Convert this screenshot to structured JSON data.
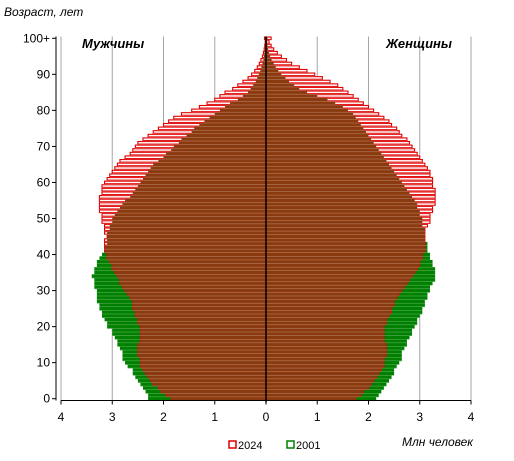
{
  "chart_data": {
    "type": "population-pyramid",
    "ylabel": "Возраст, лет",
    "xlabel": "Млн человек",
    "left_label": "Мужчины",
    "right_label": "Женщины",
    "x_ticks": [
      "4",
      "3",
      "2",
      "1",
      "0",
      "1",
      "2",
      "3",
      "4"
    ],
    "xlim": [
      -4,
      4
    ],
    "y_ticks": [
      "0",
      "10",
      "20",
      "30",
      "40",
      "50",
      "60",
      "70",
      "80",
      "90",
      "100+"
    ],
    "y_tick_values": [
      0,
      10,
      20,
      30,
      40,
      50,
      60,
      70,
      80,
      90,
      100
    ],
    "ylim": [
      0,
      100
    ],
    "grid_x": true,
    "legend_position": "bottom",
    "ages_key": "ages 0..100 (100 = 100+), values in millions",
    "series": [
      {
        "name": "2001",
        "color": "#008000",
        "fill": "#008000",
        "male": [
          2.3,
          2.3,
          2.35,
          2.4,
          2.45,
          2.5,
          2.55,
          2.6,
          2.6,
          2.7,
          2.75,
          2.8,
          2.8,
          2.8,
          2.85,
          2.9,
          2.9,
          2.95,
          3.0,
          3.0,
          3.1,
          3.1,
          3.15,
          3.2,
          3.2,
          3.25,
          3.25,
          3.3,
          3.3,
          3.3,
          3.3,
          3.35,
          3.35,
          3.35,
          3.4,
          3.35,
          3.35,
          3.3,
          3.3,
          3.25,
          3.2,
          3.15,
          3.15,
          3.1,
          3.1,
          3.1,
          3.1,
          3.05,
          3.05,
          3.0,
          3.0,
          2.95,
          2.9,
          2.85,
          2.8,
          2.75,
          2.65,
          2.6,
          2.55,
          2.5,
          2.45,
          2.4,
          2.35,
          2.3,
          2.25,
          2.2,
          2.1,
          2.0,
          1.95,
          1.85,
          1.8,
          1.7,
          1.65,
          1.55,
          1.45,
          1.4,
          1.3,
          1.2,
          1.1,
          1.0,
          0.9,
          0.8,
          0.7,
          0.55,
          0.45,
          0.35,
          0.3,
          0.25,
          0.2,
          0.17,
          0.14,
          0.11,
          0.09,
          0.07,
          0.05,
          0.04,
          0.03,
          0.02,
          0.015,
          0.01,
          0.02
        ],
        "female": [
          2.15,
          2.2,
          2.25,
          2.3,
          2.35,
          2.4,
          2.45,
          2.5,
          2.5,
          2.55,
          2.6,
          2.65,
          2.65,
          2.65,
          2.7,
          2.75,
          2.75,
          2.8,
          2.85,
          2.85,
          2.9,
          2.95,
          2.95,
          3.0,
          3.05,
          3.05,
          3.1,
          3.1,
          3.15,
          3.15,
          3.2,
          3.2,
          3.25,
          3.3,
          3.3,
          3.3,
          3.3,
          3.25,
          3.25,
          3.2,
          3.2,
          3.15,
          3.15,
          3.15,
          3.1,
          3.1,
          3.1,
          3.1,
          3.05,
          3.05,
          3.05,
          3.0,
          3.0,
          2.95,
          2.95,
          2.9,
          2.85,
          2.8,
          2.75,
          2.7,
          2.65,
          2.6,
          2.55,
          2.5,
          2.45,
          2.4,
          2.35,
          2.3,
          2.25,
          2.2,
          2.15,
          2.1,
          2.05,
          2.0,
          1.95,
          1.9,
          1.85,
          1.8,
          1.75,
          1.7,
          1.6,
          1.5,
          1.35,
          1.2,
          1.0,
          0.8,
          0.65,
          0.55,
          0.45,
          0.38,
          0.3,
          0.24,
          0.19,
          0.15,
          0.11,
          0.08,
          0.06,
          0.04,
          0.03,
          0.02,
          0.03
        ]
      },
      {
        "name": "2024",
        "color": "#e00000",
        "fill": "#ffffff",
        "male": [
          1.85,
          1.95,
          2.05,
          2.1,
          2.2,
          2.25,
          2.3,
          2.35,
          2.4,
          2.45,
          2.45,
          2.45,
          2.5,
          2.5,
          2.5,
          2.5,
          2.45,
          2.45,
          2.45,
          2.45,
          2.45,
          2.5,
          2.5,
          2.55,
          2.55,
          2.6,
          2.6,
          2.6,
          2.65,
          2.7,
          2.75,
          2.8,
          2.85,
          2.85,
          2.9,
          2.95,
          3.0,
          3.0,
          3.05,
          3.1,
          3.1,
          3.15,
          3.15,
          3.15,
          3.15,
          3.1,
          3.15,
          3.15,
          3.15,
          3.2,
          3.2,
          3.2,
          3.25,
          3.25,
          3.25,
          3.25,
          3.25,
          3.2,
          3.2,
          3.2,
          3.15,
          3.1,
          3.05,
          3.0,
          2.95,
          2.9,
          2.85,
          2.75,
          2.65,
          2.6,
          2.55,
          2.5,
          2.4,
          2.3,
          2.2,
          2.1,
          2.0,
          1.9,
          1.8,
          1.65,
          1.45,
          1.3,
          1.15,
          1.0,
          0.9,
          0.8,
          0.65,
          0.55,
          0.45,
          0.35,
          0.28,
          0.22,
          0.17,
          0.13,
          0.1,
          0.07,
          0.05,
          0.035,
          0.025,
          0.015,
          0.03
        ],
        "female": [
          1.75,
          1.85,
          1.9,
          2.0,
          2.05,
          2.1,
          2.15,
          2.2,
          2.25,
          2.3,
          2.3,
          2.3,
          2.35,
          2.35,
          2.35,
          2.35,
          2.3,
          2.3,
          2.3,
          2.3,
          2.3,
          2.35,
          2.35,
          2.4,
          2.45,
          2.45,
          2.5,
          2.5,
          2.55,
          2.6,
          2.65,
          2.7,
          2.75,
          2.8,
          2.85,
          2.9,
          2.95,
          3.0,
          3.0,
          3.05,
          3.05,
          3.1,
          3.1,
          3.1,
          3.1,
          3.1,
          3.1,
          3.1,
          3.15,
          3.2,
          3.2,
          3.2,
          3.25,
          3.25,
          3.3,
          3.3,
          3.3,
          3.3,
          3.3,
          3.25,
          3.25,
          3.25,
          3.2,
          3.2,
          3.15,
          3.1,
          3.05,
          3.0,
          2.95,
          2.9,
          2.85,
          2.8,
          2.75,
          2.65,
          2.6,
          2.55,
          2.45,
          2.4,
          2.3,
          2.2,
          2.1,
          2.0,
          1.9,
          1.8,
          1.7,
          1.6,
          1.5,
          1.4,
          1.25,
          1.1,
          0.95,
          0.8,
          0.65,
          0.5,
          0.4,
          0.3,
          0.22,
          0.15,
          0.1,
          0.06,
          0.1
        ]
      }
    ]
  }
}
